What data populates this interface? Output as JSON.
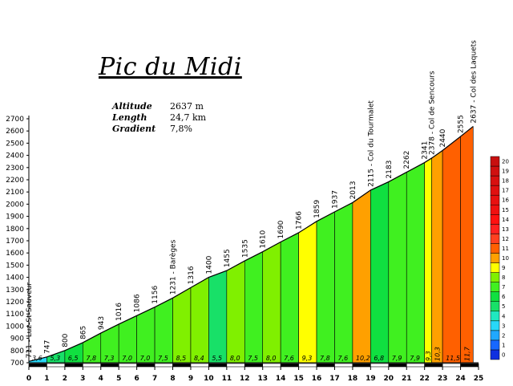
{
  "header": {
    "title": "Pic du Midi",
    "stats": [
      {
        "label": "Altitude",
        "value": "2637 m"
      },
      {
        "label": "Length",
        "value": "24,7 km"
      },
      {
        "label": "Gradient",
        "value": "7,8%"
      }
    ]
  },
  "chart_data": {
    "type": "area",
    "title": "Pic du Midi",
    "xlabel": "",
    "ylabel": "",
    "xlim": [
      0,
      25
    ],
    "ylim": [
      700,
      2700
    ],
    "yticks": [
      700,
      800,
      900,
      1000,
      1100,
      1200,
      1300,
      1400,
      1500,
      1600,
      1700,
      1800,
      1900,
      2000,
      2100,
      2200,
      2300,
      2400,
      2500,
      2600,
      2700
    ],
    "xticks": [
      0,
      1,
      2,
      3,
      4,
      5,
      6,
      7,
      8,
      9,
      10,
      11,
      12,
      13,
      14,
      15,
      16,
      17,
      18,
      19,
      20,
      21,
      22,
      23,
      24,
      25
    ],
    "profile": [
      {
        "x": 0,
        "alt": 711,
        "label": "711 - Luz-St-Sauveur"
      },
      {
        "x": 1,
        "alt": 747,
        "label": "747"
      },
      {
        "x": 2,
        "alt": 800,
        "label": "800"
      },
      {
        "x": 3,
        "alt": 865,
        "label": "865"
      },
      {
        "x": 4,
        "alt": 943,
        "label": "943"
      },
      {
        "x": 5,
        "alt": 1016,
        "label": "1016"
      },
      {
        "x": 6,
        "alt": 1086,
        "label": "1086"
      },
      {
        "x": 7,
        "alt": 1156,
        "label": "1156"
      },
      {
        "x": 8,
        "alt": 1231,
        "label": "1231 - Barèges"
      },
      {
        "x": 9,
        "alt": 1316,
        "label": "1316"
      },
      {
        "x": 10,
        "alt": 1400,
        "label": "1400"
      },
      {
        "x": 11,
        "alt": 1455,
        "label": "1455"
      },
      {
        "x": 12,
        "alt": 1535,
        "label": "1535"
      },
      {
        "x": 13,
        "alt": 1610,
        "label": "1610"
      },
      {
        "x": 14,
        "alt": 1690,
        "label": "1690"
      },
      {
        "x": 15,
        "alt": 1766,
        "label": "1766"
      },
      {
        "x": 16,
        "alt": 1859,
        "label": "1859"
      },
      {
        "x": 17,
        "alt": 1937,
        "label": "1937"
      },
      {
        "x": 18,
        "alt": 2013,
        "label": "2013"
      },
      {
        "x": 19,
        "alt": 2115,
        "label": "2115 - Col du Tourmalet"
      },
      {
        "x": 20,
        "alt": 2183,
        "label": "2183"
      },
      {
        "x": 21,
        "alt": 2262,
        "label": "2262"
      },
      {
        "x": 22,
        "alt": 2341,
        "label": "2341"
      },
      {
        "x": 22.4,
        "alt": 2378,
        "label": "2378 - Col de Sencours"
      },
      {
        "x": 23,
        "alt": 2440,
        "label": "2440"
      },
      {
        "x": 24,
        "alt": 2555,
        "label": "2555"
      },
      {
        "x": 24.7,
        "alt": 2637,
        "label": "2637 - Col des Laquets"
      }
    ],
    "segments": [
      {
        "from": 0,
        "to": 1,
        "gradient": "3,6"
      },
      {
        "from": 1,
        "to": 2,
        "gradient": "5,3"
      },
      {
        "from": 2,
        "to": 3,
        "gradient": "6,5"
      },
      {
        "from": 3,
        "to": 4,
        "gradient": "7,8"
      },
      {
        "from": 4,
        "to": 5,
        "gradient": "7,3"
      },
      {
        "from": 5,
        "to": 6,
        "gradient": "7,0"
      },
      {
        "from": 6,
        "to": 7,
        "gradient": "7,0"
      },
      {
        "from": 7,
        "to": 8,
        "gradient": "7,5"
      },
      {
        "from": 8,
        "to": 9,
        "gradient": "8,5"
      },
      {
        "from": 9,
        "to": 10,
        "gradient": "8,4"
      },
      {
        "from": 10,
        "to": 11,
        "gradient": "5,5"
      },
      {
        "from": 11,
        "to": 12,
        "gradient": "8,0"
      },
      {
        "from": 12,
        "to": 13,
        "gradient": "7,5"
      },
      {
        "from": 13,
        "to": 14,
        "gradient": "8,0"
      },
      {
        "from": 14,
        "to": 15,
        "gradient": "7,6"
      },
      {
        "from": 15,
        "to": 16,
        "gradient": "9,3"
      },
      {
        "from": 16,
        "to": 17,
        "gradient": "7,8"
      },
      {
        "from": 17,
        "to": 18,
        "gradient": "7,6"
      },
      {
        "from": 18,
        "to": 19,
        "gradient": "10,2"
      },
      {
        "from": 19,
        "to": 20,
        "gradient": "6,8"
      },
      {
        "from": 20,
        "to": 21,
        "gradient": "7,9"
      },
      {
        "from": 21,
        "to": 22,
        "gradient": "7,9"
      },
      {
        "from": 22,
        "to": 22.4,
        "gradient": "9,3"
      },
      {
        "from": 22.4,
        "to": 23,
        "gradient": "10,3"
      },
      {
        "from": 23,
        "to": 24,
        "gradient": "11,5"
      },
      {
        "from": 24,
        "to": 24.7,
        "gradient": "11,7"
      }
    ],
    "gradient_scale": {
      "labels": [
        "0",
        "1",
        "2",
        "3",
        "4",
        "5",
        "6",
        "7",
        "8",
        "9",
        "10",
        "11",
        "12",
        "13",
        "14",
        "15",
        "16",
        "17",
        "18",
        "19",
        "20"
      ],
      "colors": {
        "0": "#1030e0",
        "1": "#1868ff",
        "2": "#20a8ff",
        "3": "#28d8f8",
        "4": "#20e8c0",
        "5": "#18e068",
        "6": "#10e040",
        "7": "#40f020",
        "8": "#80f000",
        "9": "#ffff00",
        "10": "#ffa000",
        "11": "#ff6000",
        "12": "#ff4020",
        "13": "#ff2020",
        "14": "#ff1010",
        "15": "#f01010",
        "16": "#e81010",
        "17": "#e01010",
        "18": "#d81010",
        "19": "#d01010",
        "20": "#c81010"
      }
    }
  }
}
